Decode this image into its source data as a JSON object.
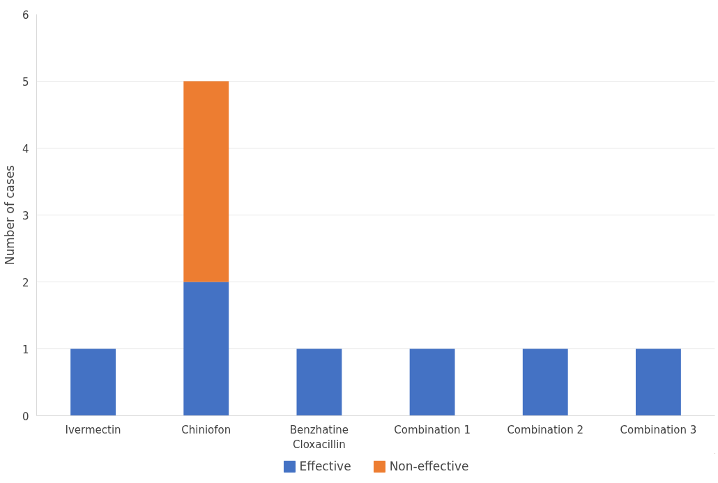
{
  "chart_data": {
    "type": "bar",
    "stacked": true,
    "ylabel": "Number of cases",
    "categories": [
      "Ivermectin",
      "Chiniofon",
      "Benzhatine\nCloxacillin",
      "Combination 1",
      "Combination 2",
      "Combination 3"
    ],
    "series": [
      {
        "name": "Effective",
        "color": "#4472c4",
        "values": [
          1,
          2,
          1,
          1,
          1,
          1
        ]
      },
      {
        "name": "Non-effective",
        "color": "#ed7d31",
        "values": [
          0,
          3,
          0,
          0,
          0,
          0
        ]
      }
    ],
    "ylim": [
      0,
      6
    ],
    "yticks": [
      0,
      1,
      2,
      3,
      4,
      5,
      6
    ],
    "grid": "y",
    "legend": "bottom"
  }
}
